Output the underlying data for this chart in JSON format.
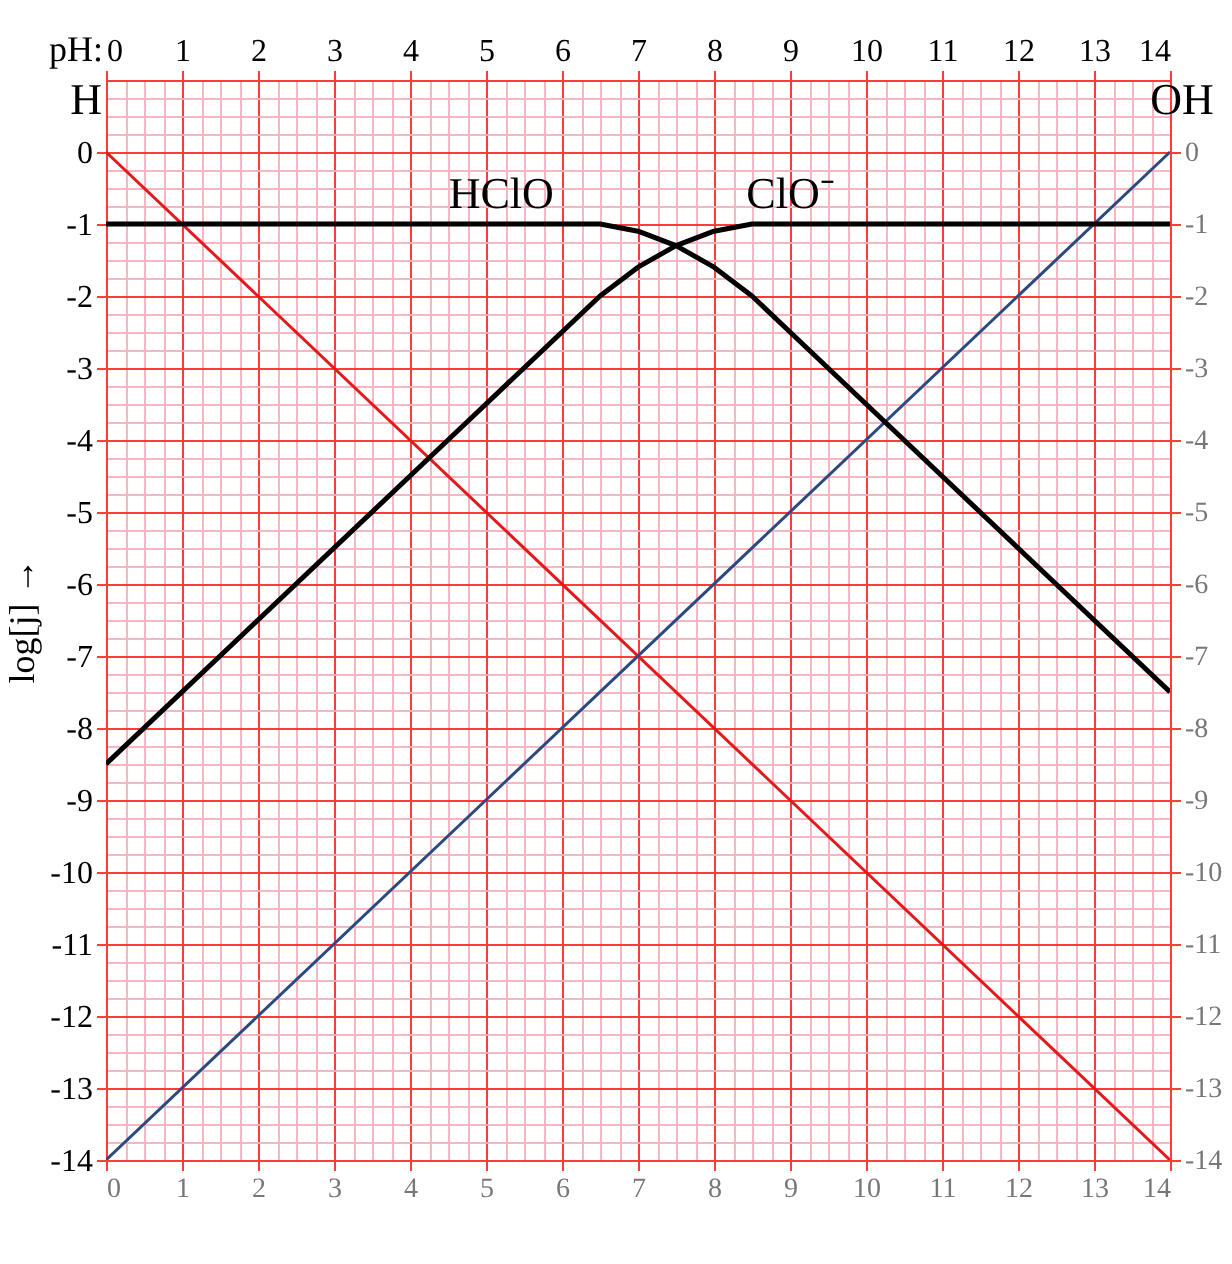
{
  "chart_data": {
    "type": "line",
    "x2label": "pH:",
    "ylabel": "log[j] →",
    "xlim": [
      0,
      14
    ],
    "xticks": [
      0,
      {
        "value": 0.25,
        "label": null
      },
      {
        "value": 0.5,
        "label": null
      },
      {
        "value": 0.75,
        "label": null
      },
      1,
      {
        "value": 1.25,
        "label": null
      },
      {
        "value": 1.5,
        "label": null
      },
      {
        "value": 1.75,
        "label": null
      },
      2,
      {
        "value": 2.25,
        "label": null
      },
      {
        "value": 2.5,
        "label": null
      },
      {
        "value": 2.75,
        "label": null
      },
      3,
      {
        "value": 3.25,
        "label": null
      },
      {
        "value": 3.5,
        "label": null
      },
      {
        "value": 3.75,
        "label": null
      },
      4,
      {
        "value": 4.25,
        "label": null
      },
      {
        "value": 4.5,
        "label": null
      },
      {
        "value": 4.75,
        "label": null
      },
      5,
      {
        "value": 5.25,
        "label": null
      },
      {
        "value": 5.5,
        "label": null
      },
      {
        "value": 5.75,
        "label": null
      },
      6,
      {
        "value": 6.25,
        "label": null
      },
      {
        "value": 6.5,
        "label": null
      },
      {
        "value": 6.75,
        "label": null
      },
      7,
      {
        "value": 7.25,
        "label": null
      },
      {
        "value": 7.5,
        "label": null
      },
      {
        "value": 7.75,
        "label": null
      },
      8,
      {
        "value": 8.25,
        "label": null
      },
      {
        "value": 8.5,
        "label": null
      },
      {
        "value": 8.75,
        "label": null
      },
      9,
      {
        "value": 9.25,
        "label": null
      },
      {
        "value": 9.5,
        "label": null
      },
      {
        "value": 9.75,
        "label": null
      },
      10,
      {
        "value": 10.25,
        "label": null
      },
      {
        "value": 10.5,
        "label": null
      },
      {
        "value": 10.75,
        "label": null
      },
      11,
      {
        "value": 11.25,
        "label": null
      },
      {
        "value": 11.5,
        "label": null
      },
      {
        "value": 11.75,
        "label": null
      },
      12,
      {
        "value": 12.25,
        "label": null
      },
      {
        "value": 12.5,
        "label": null
      },
      {
        "value": 12.75,
        "label": null
      },
      13,
      {
        "value": 13.25,
        "label": null
      },
      {
        "value": 13.5,
        "label": null
      },
      {
        "value": 13.75,
        "label": null
      },
      14
    ],
    "x2lim": [
      0,
      14
    ],
    "x2ticks": [
      0,
      1,
      2,
      3,
      4,
      5,
      6,
      7,
      8,
      9,
      10,
      11,
      12,
      13,
      14
    ],
    "ylim": [
      -14,
      1
    ],
    "yticks": [
      {
        "value": 1,
        "label": null
      },
      {
        "value": 0.75,
        "label": null
      },
      {
        "value": 0.5,
        "label": null
      },
      {
        "value": 0.25,
        "label": null
      },
      0,
      {
        "value": -0.25,
        "label": null
      },
      {
        "value": -0.5,
        "label": null
      },
      {
        "value": -0.75,
        "label": null
      },
      -1,
      {
        "value": -1.25,
        "label": null
      },
      {
        "value": -1.5,
        "label": null
      },
      {
        "value": -1.75,
        "label": null
      },
      -2,
      {
        "value": -2.25,
        "label": null
      },
      {
        "value": -2.5,
        "label": null
      },
      {
        "value": -2.75,
        "label": null
      },
      -3,
      {
        "value": -3.25,
        "label": null
      },
      {
        "value": -3.5,
        "label": null
      },
      {
        "value": -3.75,
        "label": null
      },
      -4,
      {
        "value": -4.25,
        "label": null
      },
      {
        "value": -4.5,
        "label": null
      },
      {
        "value": -4.75,
        "label": null
      },
      -5,
      {
        "value": -5.25,
        "label": null
      },
      {
        "value": -5.5,
        "label": null
      },
      {
        "value": -5.75,
        "label": null
      },
      -6,
      {
        "value": -6.25,
        "label": null
      },
      {
        "value": -6.5,
        "label": null
      },
      {
        "value": -6.75,
        "label": null
      },
      -7,
      {
        "value": -7.25,
        "label": null
      },
      {
        "value": -7.5,
        "label": null
      },
      {
        "value": -7.75,
        "label": null
      },
      -8,
      {
        "value": -8.25,
        "label": null
      },
      {
        "value": -8.5,
        "label": null
      },
      {
        "value": -8.75,
        "label": null
      },
      -9,
      {
        "value": -9.25,
        "label": null
      },
      {
        "value": -9.5,
        "label": null
      },
      {
        "value": -9.75,
        "label": null
      },
      -10,
      {
        "value": -10.25,
        "label": null
      },
      {
        "value": -10.5,
        "label": null
      },
      {
        "value": -10.75,
        "label": null
      },
      -11,
      {
        "value": -11.25,
        "label": null
      },
      {
        "value": -11.5,
        "label": null
      },
      {
        "value": -11.75,
        "label": null
      },
      -12,
      {
        "value": -12.25,
        "label": null
      },
      {
        "value": -12.5,
        "label": null
      },
      {
        "value": -12.75,
        "label": null
      },
      -13,
      {
        "value": -13.25,
        "label": null
      },
      {
        "value": -13.5,
        "label": null
      },
      {
        "value": -13.75,
        "label": null
      },
      -14
    ],
    "y2lim": [
      -14,
      1
    ],
    "y2ticks": [
      0,
      -1,
      -2,
      -3,
      -4,
      -5,
      -6,
      -7,
      -8,
      -9,
      -10,
      -11,
      -12,
      -13,
      -14
    ],
    "grid": true,
    "marker": "none",
    "line_style": "solid",
    "series": [
      {
        "color": "#e31a1c",
        "x": [
          0,
          14
        ],
        "values": [
          0,
          -14
        ]
      },
      {
        "color": "#2b4a80",
        "x": [
          0,
          14
        ],
        "values": [
          -14,
          0
        ]
      },
      {
        "color": "#000000",
        "x": [
          0,
          2,
          4,
          5,
          6,
          6.5,
          7,
          7.5,
          8,
          8.5,
          9,
          10,
          11,
          12,
          13,
          14
        ],
        "values": [
          -1.0,
          -1.0,
          -1.0,
          -1.0,
          -1.0,
          -1.0,
          -1.1,
          -1.3,
          -1.6,
          -2.0,
          -2.5,
          -3.5,
          -4.5,
          -5.5,
          -6.5,
          -7.5
        ]
      },
      {
        "color": "#000000",
        "x": [
          0,
          2,
          4,
          5,
          6,
          6.5,
          7,
          7.5,
          8,
          8.5,
          9,
          10,
          12,
          14
        ],
        "values": [
          -8.5,
          -6.5,
          -4.5,
          -3.5,
          -2.5,
          -2.0,
          -1.6,
          -1.3,
          -1.1,
          -1.0,
          -1.0,
          -1.0,
          -1.0,
          -1.0
        ]
      }
    ],
    "annotations": [
      {
        "text": "H",
        "x": 0,
        "y": 0
      },
      {
        "text": "OH",
        "x": 14,
        "y": 0
      },
      {
        "text": "HClO",
        "x": 5.2,
        "y": -1.0
      },
      {
        "text": "ClO⁻",
        "x": 9.0,
        "y": -1.0
      }
    ]
  }
}
